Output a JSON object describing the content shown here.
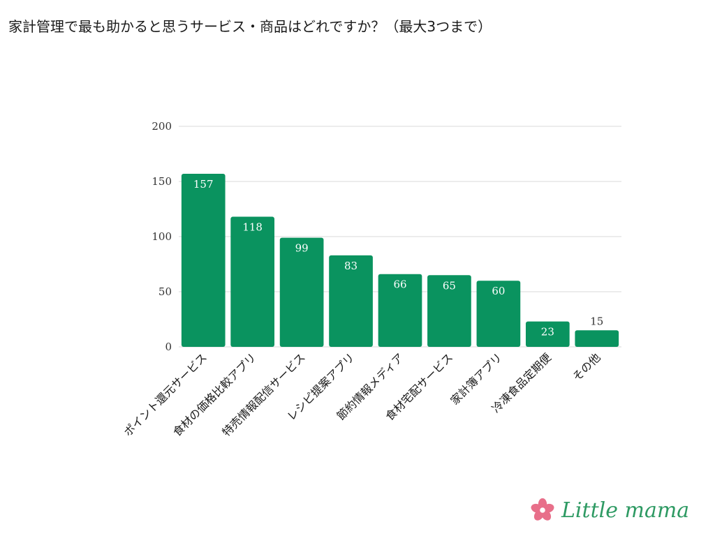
{
  "title": "家計管理で最も助かると思うサービス・商品はどれですか？（最大3つまで）",
  "brand": {
    "name": "Little mama",
    "text_color": "#2e9a63",
    "flower_color": "#e86f8a",
    "icon": "flower-icon"
  },
  "colors": {
    "bar": "#0a935f",
    "grid": "#d9d9d9",
    "axis_text": "#333333",
    "label_inside": "#ffffff",
    "label_outside": "#333333"
  },
  "chart_data": {
    "type": "bar",
    "categories": [
      "ポイント還元サービス",
      "食材の価格比較アプリ",
      "特売情報配信サービス",
      "レシピ提案アプリ",
      "節約情報メディア",
      "食材宅配サービス",
      "家計簿アプリ",
      "冷凍食品定期便",
      "その他"
    ],
    "values": [
      157,
      118,
      99,
      83,
      66,
      65,
      60,
      23,
      15
    ],
    "ylim": [
      0,
      200
    ],
    "yticks": [
      0,
      50,
      100,
      150,
      200
    ],
    "grid": true,
    "legend": "none"
  }
}
